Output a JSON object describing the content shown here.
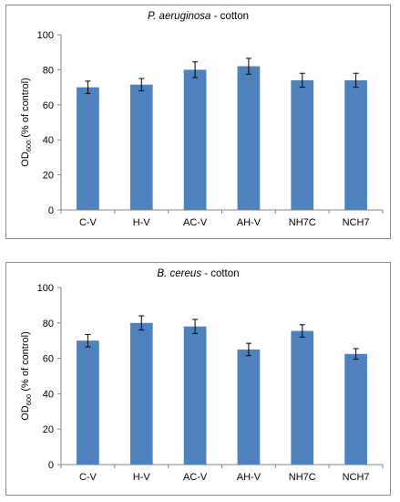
{
  "chart_data": [
    {
      "type": "bar",
      "title_italic": "P. aeruginosa",
      "title_rest": " - cotton",
      "ylabel_main": "OD",
      "ylabel_sub": "600",
      "ylabel_tail": " (% of control)",
      "categories": [
        "C-V",
        "H-V",
        "AC-V",
        "AH-V",
        "NH7C",
        "NCH7"
      ],
      "values": [
        70,
        71.5,
        80,
        82,
        74,
        74
      ],
      "errors": [
        3.5,
        3.5,
        4.5,
        4.5,
        4,
        4
      ],
      "ylim": [
        0,
        100
      ],
      "yticks": [
        0,
        20,
        40,
        60,
        80,
        100
      ],
      "bar_color": "#4f81bd",
      "grid": false
    },
    {
      "type": "bar",
      "title_italic": "B. cereus",
      "title_rest": " - cotton",
      "ylabel_main": "OD",
      "ylabel_sub": "600",
      "ylabel_tail": " (% of control)",
      "categories": [
        "C-V",
        "H-V",
        "AC-V",
        "AH-V",
        "NH7C",
        "NCH7"
      ],
      "values": [
        70,
        80,
        78,
        65,
        75.5,
        62.5
      ],
      "errors": [
        3.5,
        4,
        4,
        3.5,
        3.5,
        3
      ],
      "ylim": [
        0,
        100
      ],
      "yticks": [
        0,
        20,
        40,
        60,
        80,
        100
      ],
      "bar_color": "#4f81bd",
      "grid": false
    }
  ]
}
